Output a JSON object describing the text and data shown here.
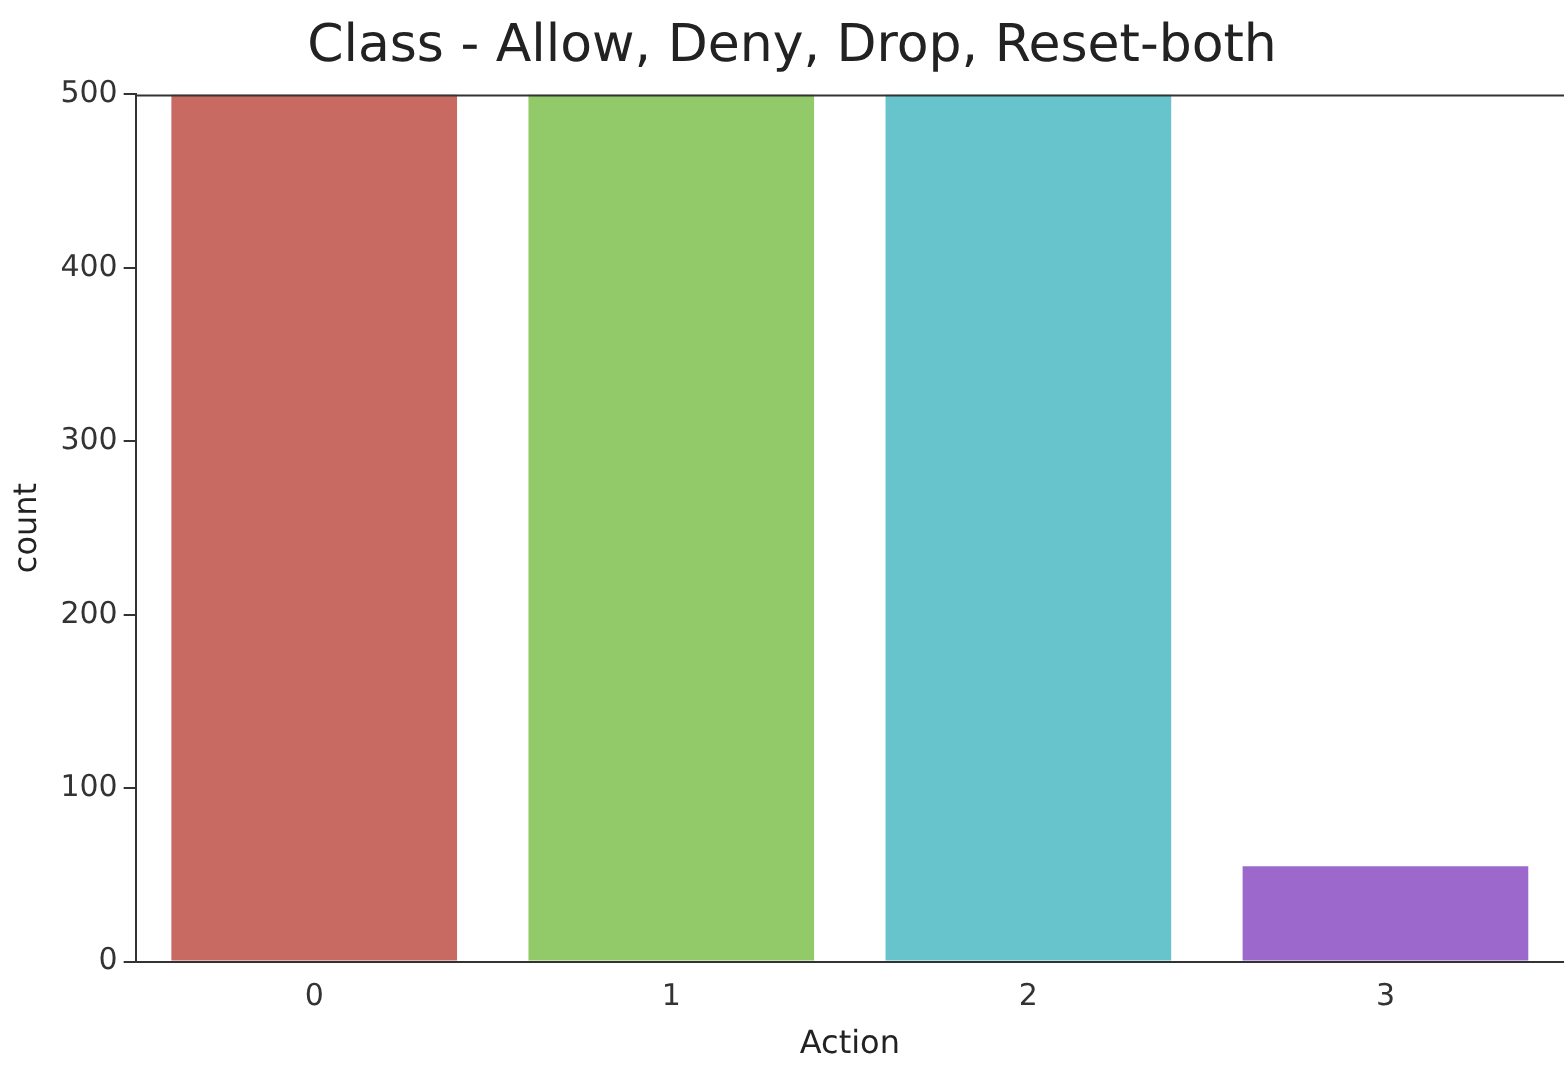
{
  "chart_data": {
    "type": "bar",
    "title": "Class - Allow, Deny, Drop, Reset-both",
    "xlabel": "Action",
    "ylabel": "count",
    "categories": [
      "0",
      "1",
      "2",
      "3"
    ],
    "values": [
      500,
      500,
      500,
      55
    ],
    "colors": [
      "#c96a62",
      "#92ca69",
      "#68c4cc",
      "#9c68cc"
    ],
    "ylim": [
      0,
      500
    ],
    "yticks": [
      0,
      100,
      200,
      300,
      400,
      500
    ],
    "grid": false,
    "legend": false
  }
}
